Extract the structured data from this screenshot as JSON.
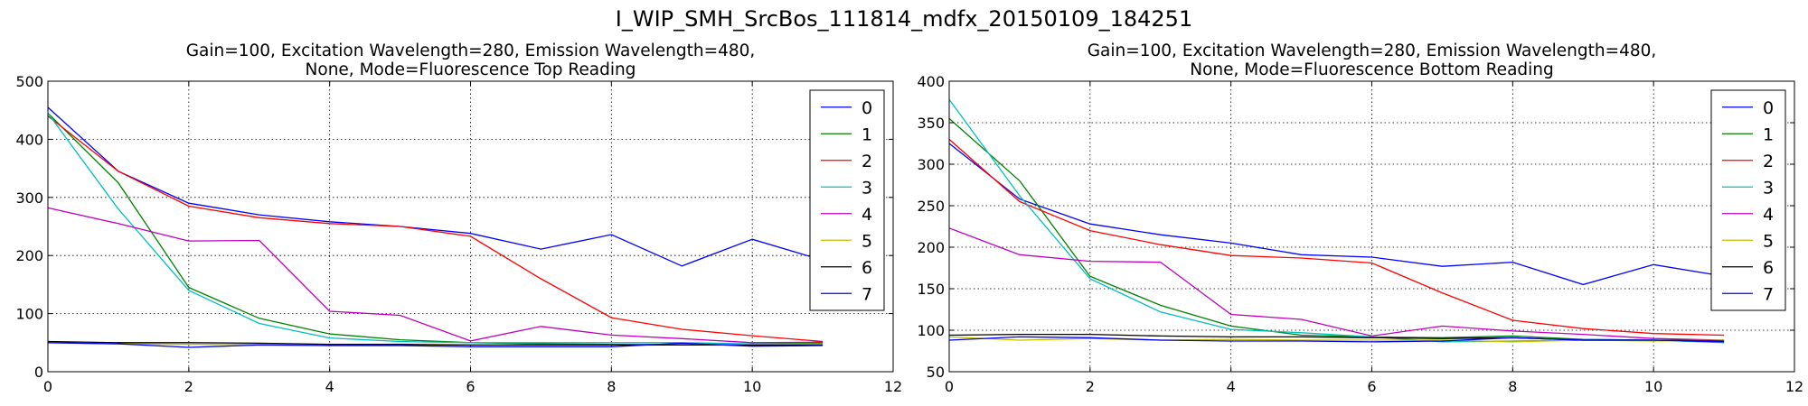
{
  "figure_title": "I_WIP_SMH_SrcBos_111814_mdfx_20150109_184251",
  "series_colors": [
    "#0000ff",
    "#008000",
    "#ff0000",
    "#00bfbf",
    "#bf00bf",
    "#bfbf00",
    "#000000",
    "#0000ff"
  ],
  "chart_data": [
    {
      "type": "line",
      "title_line1": "Gain=100, Excitation Wavelength=280, Emission Wavelength=480,",
      "title_line2": "None, Mode=Fluorescence Top Reading",
      "xlim": [
        0,
        12
      ],
      "ylim": [
        0,
        500
      ],
      "xticks": [
        0,
        2,
        4,
        6,
        8,
        10,
        12
      ],
      "yticks": [
        0,
        100,
        200,
        300,
        400,
        500
      ],
      "grid": true,
      "legend_position": "top-right",
      "x": [
        0,
        1,
        2,
        3,
        4,
        5,
        6,
        7,
        8,
        9,
        10,
        11
      ],
      "series": [
        {
          "name": "0",
          "values": [
            455,
            345,
            290,
            270,
            258,
            250,
            238,
            211,
            236,
            182,
            228,
            192
          ]
        },
        {
          "name": "1",
          "values": [
            445,
            325,
            145,
            92,
            65,
            55,
            50,
            48,
            47,
            47,
            48,
            50
          ]
        },
        {
          "name": "2",
          "values": [
            440,
            345,
            285,
            265,
            255,
            250,
            233,
            160,
            93,
            73,
            62,
            52
          ]
        },
        {
          "name": "3",
          "values": [
            445,
            280,
            140,
            83,
            58,
            52,
            50,
            50,
            50,
            50,
            48,
            48
          ]
        },
        {
          "name": "4",
          "values": [
            282,
            255,
            225,
            226,
            104,
            97,
            53,
            78,
            63,
            57,
            50,
            51
          ]
        },
        {
          "name": "5",
          "values": [
            50,
            48,
            47,
            47,
            45,
            45,
            46,
            46,
            46,
            47,
            47,
            48
          ]
        },
        {
          "name": "6",
          "values": [
            52,
            50,
            50,
            49,
            47,
            47,
            46,
            46,
            46,
            46,
            46,
            46
          ]
        },
        {
          "name": "7",
          "values": [
            50,
            48,
            42,
            46,
            45,
            45,
            43,
            43,
            43,
            49,
            44,
            45
          ]
        }
      ]
    },
    {
      "type": "line",
      "title_line1": "Gain=100, Excitation Wavelength=280, Emission Wavelength=480,",
      "title_line2": "None, Mode=Fluorescence Bottom Reading",
      "xlim": [
        0,
        12
      ],
      "ylim": [
        50,
        400
      ],
      "xticks": [
        0,
        2,
        4,
        6,
        8,
        10,
        12
      ],
      "yticks": [
        50,
        100,
        150,
        200,
        250,
        300,
        350,
        400
      ],
      "grid": true,
      "legend_position": "top-right",
      "x": [
        0,
        1,
        2,
        3,
        4,
        5,
        6,
        7,
        8,
        9,
        10,
        11
      ],
      "series": [
        {
          "name": "0",
          "values": [
            325,
            258,
            228,
            215,
            205,
            191,
            188,
            177,
            182,
            155,
            179,
            165
          ]
        },
        {
          "name": "1",
          "values": [
            355,
            280,
            165,
            130,
            105,
            94,
            92,
            91,
            93,
            89,
            88,
            88
          ]
        },
        {
          "name": "2",
          "values": [
            330,
            255,
            220,
            203,
            190,
            187,
            181,
            145,
            112,
            102,
            96,
            94
          ]
        },
        {
          "name": "3",
          "values": [
            378,
            262,
            162,
            122,
            101,
            97,
            92,
            86,
            87,
            88,
            88,
            85
          ]
        },
        {
          "name": "4",
          "values": [
            223,
            191,
            183,
            182,
            119,
            113,
            93,
            105,
            99,
            95,
            90,
            88
          ]
        },
        {
          "name": "5",
          "values": [
            92,
            88,
            90,
            88,
            89,
            88,
            88,
            88,
            86,
            88,
            87,
            88
          ]
        },
        {
          "name": "6",
          "values": [
            94,
            95,
            95,
            93,
            92,
            92,
            91,
            90,
            91,
            88,
            88,
            87
          ]
        },
        {
          "name": "7",
          "values": [
            88,
            92,
            91,
            88,
            87,
            87,
            86,
            87,
            91,
            88,
            88,
            86
          ]
        }
      ]
    }
  ]
}
